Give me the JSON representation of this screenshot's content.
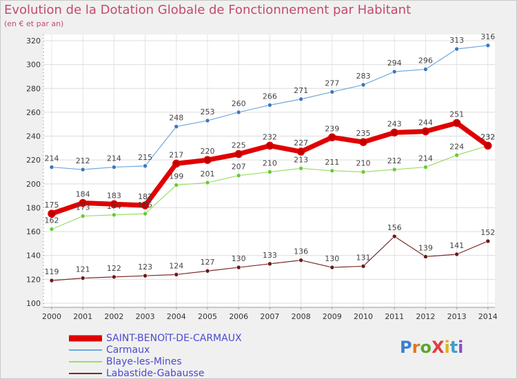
{
  "chart_data": {
    "type": "line",
    "title": "Evolution de la Dotation Globale de Fonctionnement par Habitant",
    "subtitle": "(en € et par an)",
    "categories": [
      "2000",
      "2001",
      "2002",
      "2003",
      "2004",
      "2005",
      "2006",
      "2007",
      "2008",
      "2009",
      "2010",
      "2011",
      "2012",
      "2013",
      "2014"
    ],
    "ylim": [
      100,
      320
    ],
    "yticks": [
      100,
      120,
      140,
      160,
      180,
      200,
      220,
      240,
      260,
      280,
      300,
      320
    ],
    "grid": true,
    "legend_position": "bottom-left",
    "series": [
      {
        "name": "SAINT-BENOîT-DE-CARMAUX",
        "color": "#e00000",
        "values": [
          175,
          184,
          183,
          182,
          217,
          220,
          225,
          232,
          227,
          239,
          235,
          243,
          244,
          251,
          232
        ]
      },
      {
        "name": "Carmaux",
        "color": "#6fa8dc",
        "values": [
          214,
          212,
          214,
          215,
          248,
          253,
          260,
          266,
          271,
          277,
          283,
          294,
          296,
          313,
          316
        ]
      },
      {
        "name": "Blaye-les-Mines",
        "color": "#99dd66",
        "values": [
          162,
          173,
          174,
          175,
          199,
          201,
          207,
          210,
          213,
          211,
          210,
          212,
          214,
          224,
          232
        ]
      },
      {
        "name": "Labastide-Gabausse",
        "color": "#7a2a2a",
        "values": [
          119,
          121,
          122,
          123,
          124,
          127,
          130,
          133,
          136,
          130,
          131,
          156,
          139,
          141,
          152
        ]
      }
    ]
  },
  "logo": {
    "text": "ProXiti"
  }
}
